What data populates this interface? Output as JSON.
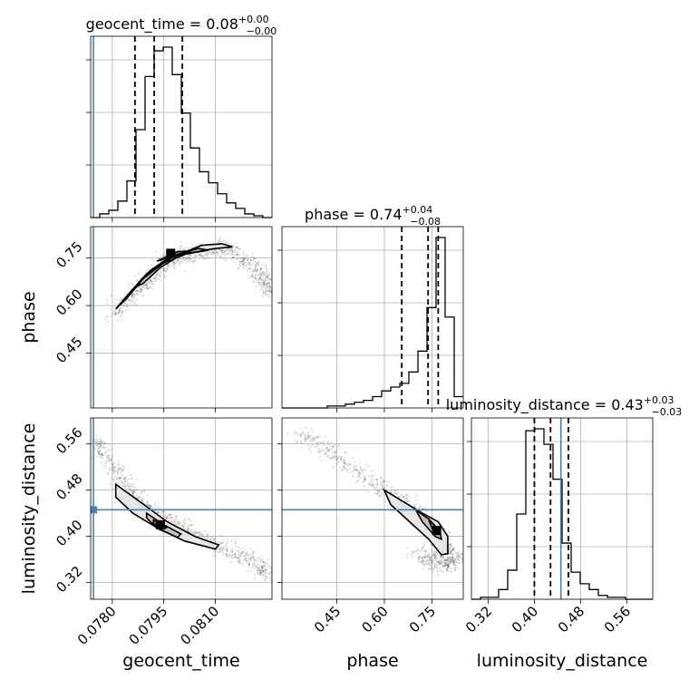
{
  "chart_data": {
    "type": "corner",
    "parameters": [
      "geocent_time",
      "phase",
      "luminosity_distance"
    ],
    "titles": [
      {
        "param": "geocent_time",
        "median": "0.08",
        "plus": "+0.00",
        "minus": "−0.00"
      },
      {
        "param": "phase",
        "median": "0.74",
        "plus": "+0.04",
        "minus": "−0.08"
      },
      {
        "param": "luminosity_distance",
        "median": "0.43",
        "plus": "+0.03",
        "minus": "−0.03"
      }
    ],
    "axes": {
      "geocent_time": {
        "range": [
          0.07737,
          0.08265
        ],
        "ticks": [
          0.078,
          0.0795,
          0.081
        ],
        "tick_labels": [
          "0.0780",
          "0.0795",
          "0.0810"
        ]
      },
      "phase": {
        "range": [
          0.277,
          0.849
        ],
        "ticks": [
          0.45,
          0.6,
          0.75
        ],
        "tick_labels": [
          "0.45",
          "0.60",
          "0.75"
        ]
      },
      "luminosity_distance": {
        "range": [
          0.291,
          0.605
        ],
        "ticks": [
          0.32,
          0.4,
          0.48,
          0.56
        ],
        "tick_labels": [
          "0.32",
          "0.40",
          "0.48",
          "0.56"
        ]
      }
    },
    "truths": {
      "geocent_time": 0.07745,
      "luminosity_distance": 0.446
    },
    "quantiles": {
      "geocent_time": [
        0.07866,
        0.07922,
        0.08004
      ],
      "phase": [
        0.655,
        0.738,
        0.77
      ],
      "luminosity_distance": [
        0.4,
        0.428,
        0.459
      ]
    },
    "histograms": {
      "geocent_time": {
        "edges_start": 0.07737,
        "bin_width": 0.000264,
        "counts": [
          0,
          2,
          4,
          9,
          20,
          48,
          77,
          91,
          93,
          78,
          57,
          38,
          25,
          19,
          13,
          8,
          5,
          2,
          1,
          0
        ]
      },
      "phase": {
        "edges_start": 0.277,
        "bin_width": 0.0286,
        "counts": [
          0,
          0,
          0,
          0,
          0,
          1,
          1,
          2,
          3,
          4,
          6,
          9,
          11,
          13,
          19,
          30,
          53,
          90,
          48,
          6
        ]
      },
      "luminosity_distance": {
        "edges_start": 0.291,
        "bin_width": 0.0157,
        "counts": [
          0,
          1,
          1,
          5,
          15,
          44,
          87,
          88,
          80,
          62,
          29,
          14,
          8,
          5,
          2,
          1,
          1,
          0,
          0,
          0
        ]
      }
    },
    "scatter_ridges": {
      "phase_vs_geocent_time": [
        [
          0.078,
          0.57
        ],
        [
          0.0786,
          0.63
        ],
        [
          0.079,
          0.68
        ],
        [
          0.0795,
          0.73
        ],
        [
          0.08,
          0.76
        ],
        [
          0.0806,
          0.77
        ],
        [
          0.0812,
          0.78
        ],
        [
          0.0818,
          0.75
        ],
        [
          0.0823,
          0.7
        ],
        [
          0.0826,
          0.64
        ]
      ],
      "luminosity_distance_vs_geocent_time": [
        [
          0.0775,
          0.57
        ],
        [
          0.078,
          0.52
        ],
        [
          0.0786,
          0.47
        ],
        [
          0.0792,
          0.44
        ],
        [
          0.0798,
          0.42
        ],
        [
          0.0805,
          0.4
        ],
        [
          0.0812,
          0.38
        ],
        [
          0.082,
          0.36
        ],
        [
          0.0826,
          0.33
        ]
      ],
      "luminosity_distance_vs_phase": [
        [
          0.33,
          0.58
        ],
        [
          0.42,
          0.55
        ],
        [
          0.52,
          0.51
        ],
        [
          0.6,
          0.48
        ],
        [
          0.68,
          0.45
        ],
        [
          0.74,
          0.42
        ],
        [
          0.79,
          0.39
        ],
        [
          0.82,
          0.36
        ],
        [
          0.8,
          0.35
        ],
        [
          0.75,
          0.36
        ],
        [
          0.7,
          0.37
        ]
      ]
    },
    "contours": {
      "phase_vs_geocent_time": [
        [
          [
            0.0781,
            0.59
          ],
          [
            0.0785,
            0.64
          ],
          [
            0.079,
            0.7
          ],
          [
            0.0797,
            0.75
          ],
          [
            0.0806,
            0.79
          ],
          [
            0.0812,
            0.795
          ],
          [
            0.0815,
            0.785
          ],
          [
            0.081,
            0.78
          ],
          [
            0.0802,
            0.765
          ],
          [
            0.0795,
            0.735
          ],
          [
            0.0789,
            0.685
          ],
          [
            0.0784,
            0.62
          ],
          [
            0.0781,
            0.59
          ]
        ],
        [
          [
            0.0787,
            0.66
          ],
          [
            0.0791,
            0.71
          ],
          [
            0.0797,
            0.755
          ],
          [
            0.0805,
            0.78
          ],
          [
            0.0808,
            0.775
          ],
          [
            0.08,
            0.76
          ],
          [
            0.0794,
            0.72
          ],
          [
            0.0789,
            0.67
          ],
          [
            0.0787,
            0.66
          ]
        ],
        [
          [
            0.0793,
            0.74
          ],
          [
            0.0799,
            0.77
          ],
          [
            0.0803,
            0.772
          ],
          [
            0.0798,
            0.757
          ],
          [
            0.0793,
            0.74
          ]
        ]
      ],
      "luminosity_distance_vs_geocent_time": [
        [
          [
            0.0781,
            0.49
          ],
          [
            0.0788,
            0.46
          ],
          [
            0.0796,
            0.425
          ],
          [
            0.0804,
            0.4
          ],
          [
            0.0811,
            0.385
          ],
          [
            0.081,
            0.378
          ],
          [
            0.0801,
            0.392
          ],
          [
            0.0793,
            0.415
          ],
          [
            0.0786,
            0.44
          ],
          [
            0.0781,
            0.468
          ],
          [
            0.0781,
            0.49
          ]
        ],
        [
          [
            0.079,
            0.44
          ],
          [
            0.0795,
            0.42
          ],
          [
            0.08,
            0.404
          ],
          [
            0.0799,
            0.398
          ],
          [
            0.0793,
            0.414
          ],
          [
            0.079,
            0.432
          ],
          [
            0.079,
            0.44
          ]
        ],
        [
          [
            0.0792,
            0.428
          ],
          [
            0.0796,
            0.416
          ],
          [
            0.0795,
            0.413
          ],
          [
            0.0792,
            0.422
          ],
          [
            0.0792,
            0.428
          ]
        ]
      ],
      "luminosity_distance_vs_phase": [
        [
          [
            0.6,
            0.48
          ],
          [
            0.66,
            0.46
          ],
          [
            0.72,
            0.44
          ],
          [
            0.77,
            0.425
          ],
          [
            0.8,
            0.4
          ],
          [
            0.8,
            0.37
          ],
          [
            0.78,
            0.368
          ],
          [
            0.74,
            0.395
          ],
          [
            0.68,
            0.425
          ],
          [
            0.62,
            0.455
          ],
          [
            0.6,
            0.48
          ]
        ],
        [
          [
            0.7,
            0.445
          ],
          [
            0.74,
            0.43
          ],
          [
            0.775,
            0.41
          ],
          [
            0.78,
            0.395
          ],
          [
            0.76,
            0.4
          ],
          [
            0.72,
            0.425
          ],
          [
            0.7,
            0.445
          ]
        ],
        [
          [
            0.74,
            0.428
          ],
          [
            0.765,
            0.415
          ],
          [
            0.77,
            0.405
          ],
          [
            0.752,
            0.412
          ],
          [
            0.74,
            0.428
          ]
        ]
      ]
    },
    "peak_markers": {
      "phase_vs_geocent_time": [
        0.0797,
        0.765
      ],
      "luminosity_distance_vs_geocent_time": [
        0.0794,
        0.42
      ],
      "luminosity_distance_vs_phase": [
        0.765,
        0.41
      ]
    },
    "grid": true
  }
}
